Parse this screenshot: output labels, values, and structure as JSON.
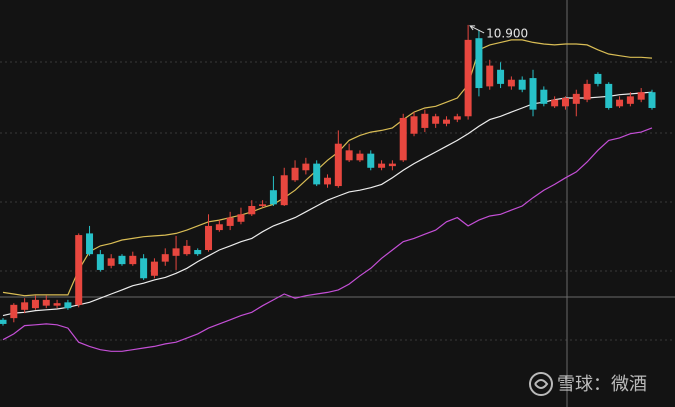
{
  "chart_data": {
    "type": "candlestick",
    "ylim": [
      6.3,
      11.2
    ],
    "up_color": "#e8473f",
    "down_color": "#27c1c8",
    "open": [
      7.35,
      7.37,
      7.47,
      7.49,
      7.52,
      7.52,
      7.56,
      7.53,
      8.39,
      8.14,
      8.0,
      8.12,
      8.02,
      8.09,
      7.88,
      8.05,
      8.12,
      8.14,
      8.19,
      8.19,
      8.43,
      8.48,
      8.53,
      8.62,
      8.72,
      8.91,
      8.73,
      9.03,
      9.15,
      9.23,
      8.98,
      8.96,
      9.27,
      9.27,
      9.35,
      9.18,
      9.2,
      9.27,
      9.59,
      9.66,
      9.71,
      9.71,
      9.76,
      9.8,
      10.74,
      10.16,
      10.36,
      10.16,
      10.24,
      10.26,
      10.12,
      9.92,
      9.92,
      9.95,
      10.0,
      10.31,
      10.19,
      9.92,
      9.95,
      10.0,
      10.09
    ],
    "high": [
      7.37,
      7.55,
      7.61,
      7.64,
      7.64,
      7.59,
      7.59,
      8.39,
      8.48,
      8.19,
      8.14,
      8.14,
      8.17,
      8.14,
      8.09,
      8.21,
      8.36,
      8.31,
      8.21,
      8.62,
      8.55,
      8.65,
      8.7,
      8.79,
      8.79,
      9.08,
      9.18,
      9.27,
      9.3,
      9.27,
      9.1,
      9.63,
      9.47,
      9.39,
      9.39,
      9.27,
      9.27,
      9.83,
      9.85,
      9.88,
      9.83,
      9.8,
      9.83,
      10.9,
      10.84,
      10.48,
      10.45,
      10.28,
      10.28,
      10.36,
      10.16,
      10.04,
      10.04,
      10.12,
      10.24,
      10.33,
      10.21,
      10.04,
      10.09,
      10.14,
      10.12
    ],
    "low": [
      7.28,
      7.32,
      7.43,
      7.47,
      7.49,
      7.49,
      7.47,
      7.5,
      8.12,
      7.93,
      7.97,
      8.0,
      8.0,
      7.83,
      7.85,
      8.0,
      7.95,
      8.12,
      8.12,
      8.17,
      8.41,
      8.43,
      8.5,
      8.6,
      8.7,
      8.72,
      8.72,
      9.01,
      9.1,
      8.96,
      8.94,
      8.94,
      9.25,
      9.25,
      9.15,
      9.15,
      9.15,
      9.25,
      9.56,
      9.61,
      9.66,
      9.68,
      9.73,
      9.76,
      10.04,
      10.12,
      10.14,
      10.12,
      10.09,
      9.8,
      9.92,
      9.9,
      9.88,
      9.8,
      9.97,
      10.16,
      9.88,
      9.9,
      9.92,
      9.97,
      9.88
    ],
    "close": [
      7.3,
      7.53,
      7.56,
      7.59,
      7.59,
      7.55,
      7.49,
      8.37,
      8.14,
      7.95,
      8.09,
      8.02,
      8.12,
      7.85,
      8.05,
      8.14,
      8.21,
      8.24,
      8.14,
      8.48,
      8.5,
      8.58,
      8.62,
      8.72,
      8.74,
      8.74,
      9.09,
      9.18,
      9.23,
      8.98,
      9.06,
      9.47,
      9.39,
      9.35,
      9.18,
      9.23,
      9.23,
      9.78,
      9.8,
      9.83,
      9.8,
      9.76,
      9.8,
      10.72,
      10.14,
      10.41,
      10.19,
      10.24,
      10.12,
      9.88,
      9.95,
      10.0,
      10.02,
      10.07,
      10.19,
      10.19,
      9.9,
      10.0,
      10.04,
      10.09,
      9.9
    ],
    "bands": {
      "upper": {
        "color": "#d9bd55",
        "values": [
          7.68,
          7.66,
          7.64,
          7.65,
          7.65,
          7.65,
          7.65,
          7.95,
          8.17,
          8.24,
          8.27,
          8.31,
          8.33,
          8.35,
          8.36,
          8.37,
          8.39,
          8.43,
          8.48,
          8.53,
          8.55,
          8.58,
          8.61,
          8.65,
          8.7,
          8.74,
          8.82,
          8.91,
          9.03,
          9.15,
          9.27,
          9.37,
          9.51,
          9.57,
          9.61,
          9.63,
          9.66,
          9.76,
          9.85,
          9.9,
          9.92,
          9.97,
          10.02,
          10.18,
          10.6,
          10.66,
          10.69,
          10.72,
          10.72,
          10.69,
          10.67,
          10.66,
          10.67,
          10.67,
          10.66,
          10.6,
          10.55,
          10.53,
          10.51,
          10.51,
          10.5
        ]
      },
      "middle": {
        "color": "#ececec",
        "values": [
          7.4,
          7.43,
          7.44,
          7.46,
          7.47,
          7.48,
          7.5,
          7.53,
          7.56,
          7.61,
          7.66,
          7.71,
          7.76,
          7.79,
          7.83,
          7.86,
          7.91,
          7.97,
          8.05,
          8.12,
          8.19,
          8.24,
          8.29,
          8.33,
          8.41,
          8.48,
          8.53,
          8.58,
          8.65,
          8.72,
          8.79,
          8.84,
          8.89,
          8.91,
          8.94,
          8.98,
          9.06,
          9.15,
          9.23,
          9.3,
          9.37,
          9.44,
          9.51,
          9.59,
          9.68,
          9.76,
          9.8,
          9.85,
          9.9,
          9.95,
          9.97,
          10.0,
          10.02,
          10.02,
          10.02,
          10.03,
          10.04,
          10.06,
          10.07,
          10.08,
          10.09
        ]
      },
      "lower": {
        "color": "#c44fd6",
        "values": [
          7.11,
          7.18,
          7.28,
          7.29,
          7.3,
          7.29,
          7.25,
          7.08,
          7.03,
          6.99,
          6.97,
          6.97,
          6.99,
          7.01,
          7.03,
          7.06,
          7.08,
          7.13,
          7.18,
          7.25,
          7.3,
          7.35,
          7.4,
          7.44,
          7.52,
          7.59,
          7.66,
          7.61,
          7.64,
          7.66,
          7.68,
          7.71,
          7.78,
          7.88,
          7.97,
          8.09,
          8.19,
          8.29,
          8.33,
          8.38,
          8.43,
          8.53,
          8.58,
          8.48,
          8.55,
          8.6,
          8.62,
          8.67,
          8.72,
          8.82,
          8.91,
          8.98,
          9.06,
          9.13,
          9.25,
          9.39,
          9.51,
          9.54,
          9.59,
          9.61,
          9.66
        ]
      }
    },
    "high_label": "10.900",
    "watermark": "雪球：微酒"
  }
}
